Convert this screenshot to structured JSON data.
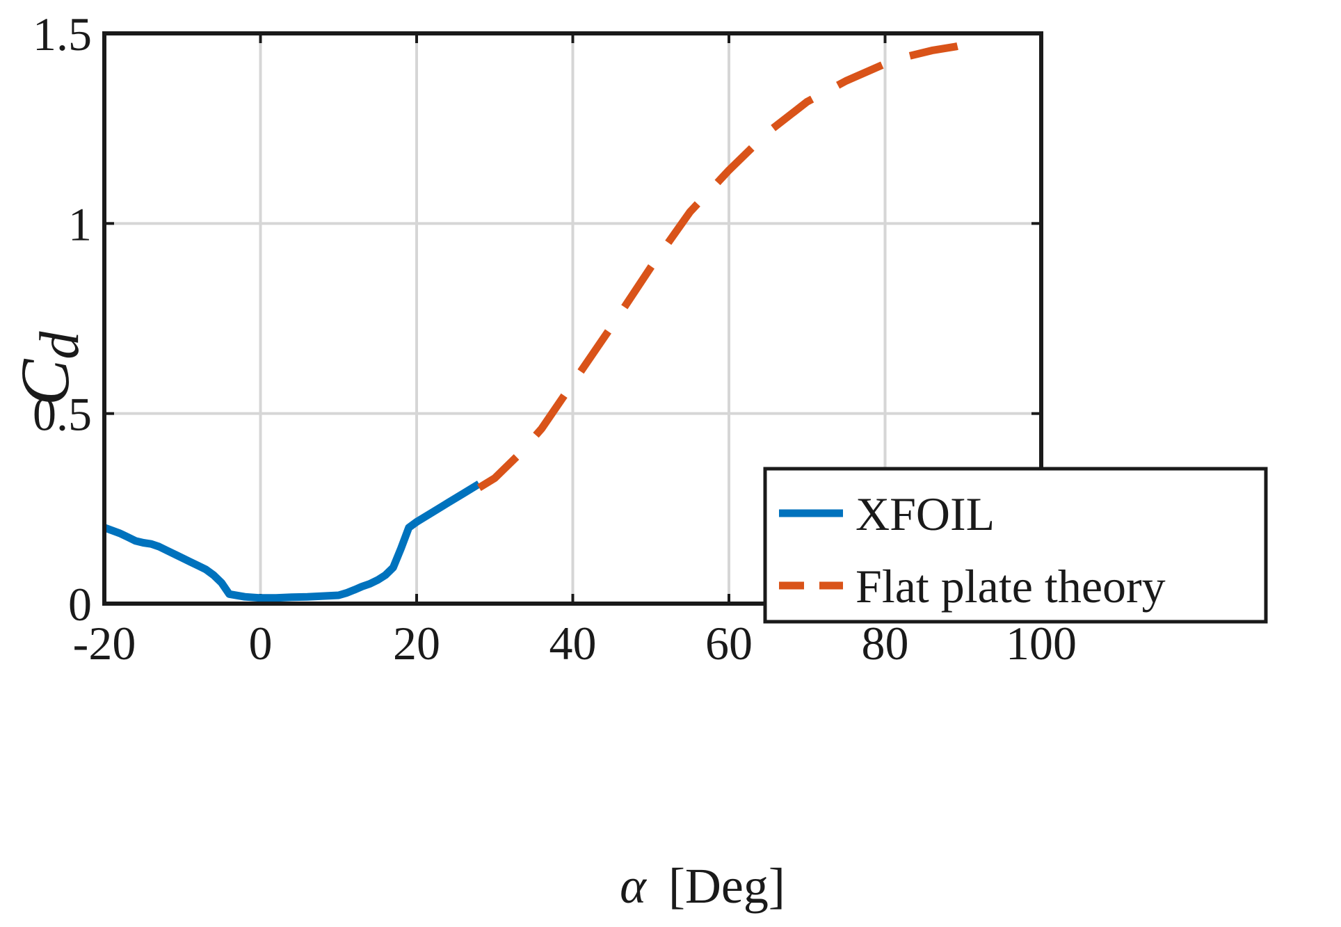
{
  "chart_data": {
    "type": "line",
    "title": "",
    "xlabel": "α [Deg]",
    "xlabel_symbol": "α",
    "xlabel_unit": "[Deg]",
    "ylabel": "Cd",
    "ylabel_main": "C",
    "ylabel_sub": "d",
    "xlim": [
      -20,
      100
    ],
    "ylim": [
      0,
      1.5
    ],
    "xticks": [
      -20,
      0,
      20,
      40,
      60,
      80,
      100
    ],
    "xtick_labels": [
      "-20",
      "0",
      "20",
      "40",
      "60",
      "80",
      "100"
    ],
    "yticks": [
      0,
      0.5,
      1,
      1.5
    ],
    "ytick_labels": [
      "0",
      "0.5",
      "1",
      "1.5"
    ],
    "grid": true,
    "legend_position": "center-right",
    "series": [
      {
        "name": "XFOIL",
        "color": "#0072BD",
        "style": "solid",
        "x": [
          -20,
          -18,
          -17,
          -16,
          -15,
          -14,
          -13,
          -12,
          -11,
          -10,
          -9,
          -8,
          -7,
          -6,
          -5,
          -4,
          -2,
          0,
          2,
          4,
          6,
          8,
          10,
          11,
          12,
          13,
          14,
          15,
          16,
          17,
          18,
          19,
          20,
          22,
          24,
          26,
          28
        ],
        "y": [
          0.2,
          0.185,
          0.175,
          0.165,
          0.16,
          0.157,
          0.15,
          0.14,
          0.13,
          0.12,
          0.11,
          0.1,
          0.09,
          0.075,
          0.055,
          0.025,
          0.018,
          0.015,
          0.015,
          0.017,
          0.018,
          0.02,
          0.022,
          0.028,
          0.036,
          0.045,
          0.052,
          0.062,
          0.075,
          0.095,
          0.145,
          0.2,
          0.215,
          0.24,
          0.265,
          0.29,
          0.315
        ]
      },
      {
        "name": "Flat plate theory",
        "color": "#D95319",
        "style": "dashed",
        "x": [
          28,
          30,
          33,
          36,
          40,
          45,
          50,
          55,
          60,
          65,
          70,
          75,
          80,
          83,
          86,
          89,
          90
        ],
        "y": [
          0.305,
          0.33,
          0.39,
          0.46,
          0.58,
          0.73,
          0.885,
          1.03,
          1.14,
          1.24,
          1.32,
          1.375,
          1.42,
          1.44,
          1.455,
          1.465,
          1.47
        ]
      }
    ]
  }
}
